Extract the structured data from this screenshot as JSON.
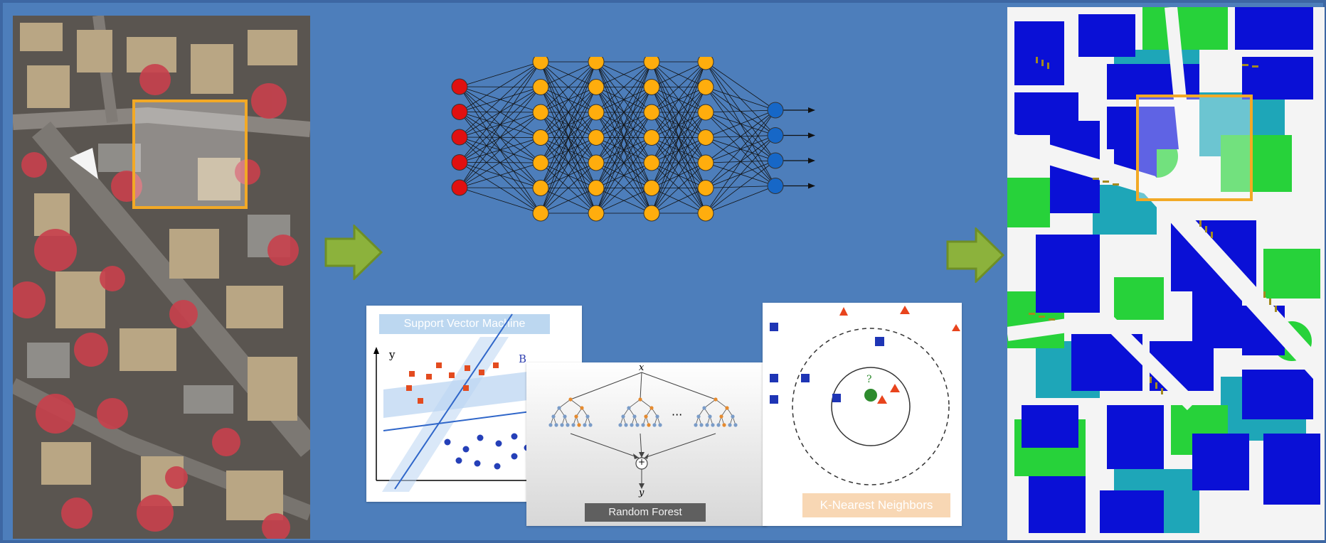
{
  "diagram": {
    "svm_title": "Support Vector Machine",
    "svm_axis_y": "y",
    "svm_line_label": "B",
    "rf_title": "Random Forest",
    "rf_input": "x",
    "rf_output": "y",
    "rf_ellipsis": "···",
    "rf_sum": "+",
    "knn_title": "K-Nearest Neighbors",
    "knn_query": "?"
  },
  "network": {
    "layers": [
      5,
      7,
      7,
      7,
      7,
      4
    ]
  },
  "colors": {
    "background": "#4d7ebb",
    "input_node": "#e01010",
    "hidden_node": "#ffad0d",
    "output_node": "#1667c7",
    "arrow": "#8cb23c",
    "highlight_box": "#f2a926",
    "building": "#0a10d6",
    "vegetation": "#27d23a",
    "low_vegetation": "#1ea6b8",
    "car": "#a38a1f"
  }
}
